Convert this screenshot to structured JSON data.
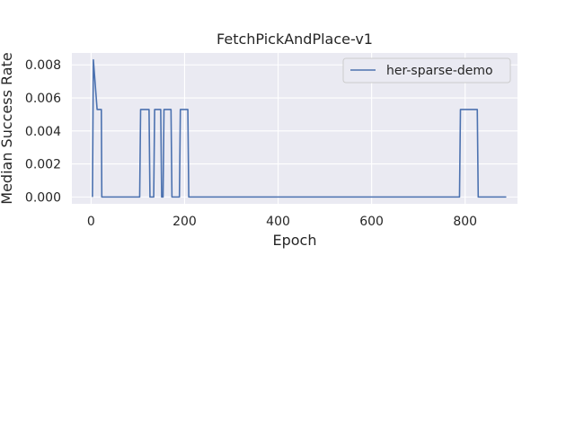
{
  "chart_data": {
    "type": "line",
    "title": "FetchPickAndPlace-v1",
    "xlabel": "Epoch",
    "ylabel": "Median Success Rate",
    "xlim": [
      -41,
      912
    ],
    "ylim": [
      -0.000415,
      0.00872
    ],
    "xticks": [
      0,
      200,
      400,
      600,
      800
    ],
    "xtick_labels": [
      "0",
      "200",
      "400",
      "600",
      "800"
    ],
    "yticks": [
      0.0,
      0.002,
      0.004,
      0.006,
      0.008
    ],
    "ytick_labels": [
      "0.000",
      "0.002",
      "0.004",
      "0.006",
      "0.008"
    ],
    "grid": true,
    "legend_position": "top-right",
    "colors": {
      "series": "#4c72b0",
      "background": "#eaeaf2",
      "grid": "#ffffff"
    },
    "series": [
      {
        "name": "her-sparse-demo",
        "x": [
          3,
          5,
          13,
          22,
          23,
          104,
          106,
          124,
          126,
          134,
          136,
          149,
          151,
          154,
          156,
          171,
          173,
          189,
          191,
          207,
          209,
          788,
          790,
          826,
          828,
          888
        ],
        "y": [
          0.0,
          0.0083,
          0.0053,
          0.0053,
          0.0,
          0.0,
          0.0053,
          0.0053,
          0.0,
          0.0,
          0.0053,
          0.0053,
          0.0,
          0.0,
          0.0053,
          0.0053,
          0.0,
          0.0,
          0.0053,
          0.0053,
          0.0,
          0.0,
          0.0053,
          0.0053,
          0.0,
          0.0
        ]
      }
    ]
  }
}
